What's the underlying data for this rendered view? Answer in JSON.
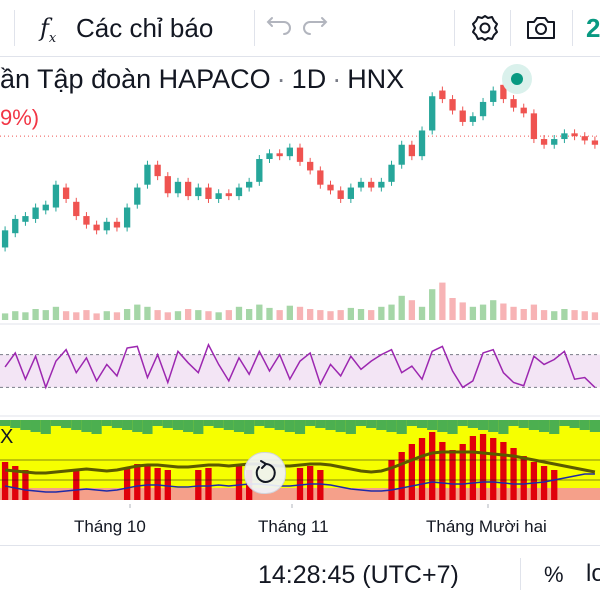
{
  "toolbar": {
    "indicators_label": "Các chỉ báo",
    "fx_glyph": "f",
    "fx_sub": "x",
    "right_text": "2"
  },
  "legend": {
    "symbol_name": "ần Tập đoàn HAPACO",
    "interval": "1D",
    "exchange": "HNX",
    "change_text": "9%)",
    "market_status_color": "#089981"
  },
  "colors": {
    "up": "#26a69a",
    "down": "#ef5350",
    "rsi_line": "#9c27b0",
    "rsi_band": "#f3e5f5",
    "adx_yellow": "#f6ff00",
    "adx_green": "#4caf50",
    "adx_red": "#e0000b",
    "adx_avg": "#5b5a00",
    "adx_line": "#1e2aa8"
  },
  "time_axis": {
    "labels": [
      "Tháng 10",
      "Tháng 11",
      "Tháng Mười hai"
    ]
  },
  "panes": {
    "adx_label": "X"
  },
  "status_bar": {
    "time": "14:28:45 (UTC+7)",
    "percent": "%",
    "log": "lo"
  },
  "chart_data": [
    {
      "type": "candlestick",
      "series": [
        {
          "o": 20,
          "c": 32
        },
        {
          "o": 30,
          "c": 40
        },
        {
          "o": 38,
          "c": 42
        },
        {
          "o": 40,
          "c": 48
        },
        {
          "o": 46,
          "c": 50
        },
        {
          "o": 48,
          "c": 64
        },
        {
          "o": 62,
          "c": 54
        },
        {
          "o": 52,
          "c": 42
        },
        {
          "o": 42,
          "c": 36
        },
        {
          "o": 36,
          "c": 32
        },
        {
          "o": 32,
          "c": 38
        },
        {
          "o": 38,
          "c": 34
        },
        {
          "o": 34,
          "c": 48
        },
        {
          "o": 50,
          "c": 62
        },
        {
          "o": 64,
          "c": 78
        },
        {
          "o": 78,
          "c": 70
        },
        {
          "o": 70,
          "c": 58
        },
        {
          "o": 58,
          "c": 66
        },
        {
          "o": 66,
          "c": 56
        },
        {
          "o": 56,
          "c": 62
        },
        {
          "o": 62,
          "c": 54
        },
        {
          "o": 54,
          "c": 58
        },
        {
          "o": 58,
          "c": 56
        },
        {
          "o": 56,
          "c": 62
        },
        {
          "o": 62,
          "c": 66
        },
        {
          "o": 66,
          "c": 82
        },
        {
          "o": 82,
          "c": 86
        },
        {
          "o": 86,
          "c": 84
        },
        {
          "o": 84,
          "c": 90
        },
        {
          "o": 90,
          "c": 80
        },
        {
          "o": 80,
          "c": 74
        },
        {
          "o": 74,
          "c": 64
        },
        {
          "o": 64,
          "c": 60
        },
        {
          "o": 60,
          "c": 54
        },
        {
          "o": 54,
          "c": 62
        },
        {
          "o": 62,
          "c": 66
        },
        {
          "o": 66,
          "c": 62
        },
        {
          "o": 62,
          "c": 66
        },
        {
          "o": 66,
          "c": 78
        },
        {
          "o": 78,
          "c": 92
        },
        {
          "o": 92,
          "c": 84
        },
        {
          "o": 84,
          "c": 102
        },
        {
          "o": 102,
          "c": 126
        },
        {
          "o": 130,
          "c": 124
        },
        {
          "o": 124,
          "c": 116
        },
        {
          "o": 116,
          "c": 108
        },
        {
          "o": 108,
          "c": 112
        },
        {
          "o": 112,
          "c": 122
        },
        {
          "o": 122,
          "c": 130
        },
        {
          "o": 134,
          "c": 124
        },
        {
          "o": 124,
          "c": 118
        },
        {
          "o": 118,
          "c": 114
        },
        {
          "o": 114,
          "c": 96
        },
        {
          "o": 96,
          "c": 92
        },
        {
          "o": 92,
          "c": 96
        },
        {
          "o": 96,
          "c": 100
        },
        {
          "o": 100,
          "c": 98
        },
        {
          "o": 98,
          "c": 95
        },
        {
          "o": 95,
          "c": 92
        }
      ],
      "price_line": 98,
      "ylim": [
        0,
        150
      ]
    },
    {
      "type": "bar",
      "name_hidden": true,
      "values": [
        6,
        8,
        7,
        10,
        9,
        12,
        8,
        7,
        9,
        6,
        8,
        7,
        10,
        14,
        12,
        9,
        7,
        8,
        10,
        9,
        8,
        7,
        9,
        12,
        10,
        14,
        11,
        9,
        13,
        12,
        10,
        9,
        8,
        9,
        11,
        10,
        9,
        12,
        14,
        22,
        18,
        12,
        28,
        34,
        20,
        16,
        12,
        14,
        18,
        15,
        12,
        10,
        14,
        9,
        8,
        10,
        9,
        8,
        7
      ],
      "ylim": [
        0,
        40
      ]
    },
    {
      "type": "line",
      "values": [
        55,
        72,
        40,
        68,
        30,
        62,
        76,
        48,
        66,
        38,
        58,
        44,
        78,
        80,
        42,
        70,
        36,
        74,
        60,
        48,
        82,
        58,
        38,
        66,
        46,
        74,
        50,
        70,
        40,
        62,
        72,
        34,
        58,
        44,
        68,
        52,
        62,
        70,
        76,
        48,
        56,
        40,
        74,
        80,
        50,
        30,
        38,
        72,
        76,
        48,
        36,
        32,
        68,
        58,
        64,
        74,
        40,
        42,
        30
      ],
      "band": [
        30,
        70
      ],
      "ylim": [
        0,
        100
      ]
    },
    {
      "type": "bar",
      "values": [
        38,
        34,
        30,
        28,
        26,
        24,
        26,
        30,
        28,
        24,
        22,
        26,
        32,
        36,
        34,
        32,
        30,
        28,
        26,
        30,
        32,
        28,
        26,
        34,
        30,
        28,
        26,
        24,
        28,
        32,
        34,
        30,
        26,
        24,
        22,
        20,
        22,
        28,
        40,
        48,
        56,
        62,
        68,
        58,
        50,
        56,
        64,
        66,
        62,
        58,
        52,
        44,
        38,
        34,
        30,
        28,
        26,
        24,
        22
      ],
      "avg": [
        30,
        29,
        28,
        27,
        27,
        28,
        29,
        30,
        31,
        30,
        29,
        30,
        32,
        34,
        35,
        35,
        34,
        33,
        33,
        34,
        35,
        35,
        34,
        35,
        36,
        36,
        35,
        34,
        34,
        35,
        36,
        36,
        35,
        33,
        31,
        29,
        28,
        29,
        32,
        36,
        40,
        44,
        47,
        48,
        48,
        48,
        48,
        47,
        46,
        45,
        44,
        42,
        40,
        38,
        36,
        34,
        32,
        30,
        28
      ],
      "line": [
        14,
        12,
        10,
        9,
        8,
        8,
        9,
        10,
        11,
        10,
        9,
        10,
        12,
        14,
        15,
        15,
        14,
        13,
        13,
        14,
        14,
        15,
        14,
        15,
        16,
        16,
        15,
        14,
        14,
        15,
        16,
        16,
        15,
        13,
        11,
        10,
        9,
        9,
        10,
        12,
        14,
        16,
        18,
        17,
        16,
        16,
        17,
        18,
        18,
        17,
        16,
        16,
        17,
        18,
        20,
        22,
        24,
        26,
        26
      ],
      "ylim": [
        0,
        80
      ]
    }
  ]
}
